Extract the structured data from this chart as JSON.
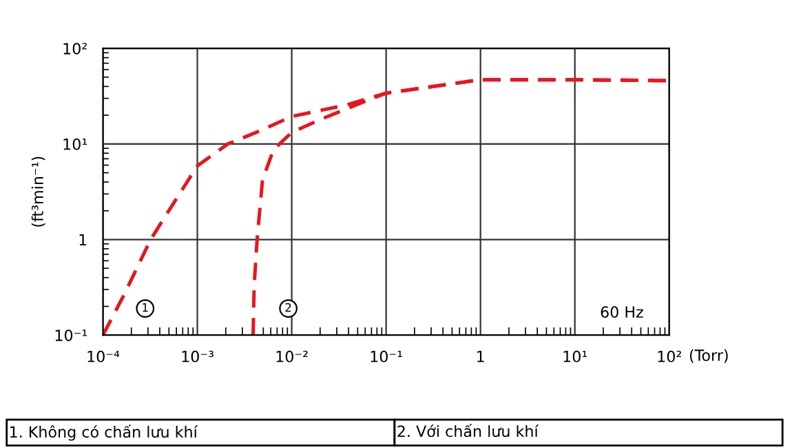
{
  "chart_data": {
    "type": "line",
    "ylabel": "(ft³min⁻¹)",
    "xlabel": "(Torr)",
    "log": "xy",
    "xlim": [
      0.0001,
      100
    ],
    "ylim": [
      0.1,
      100
    ],
    "xticks": [
      {
        "value": 0.0001,
        "label": "10⁻⁴"
      },
      {
        "value": 0.001,
        "label": "10⁻³"
      },
      {
        "value": 0.01,
        "label": "10⁻²"
      },
      {
        "value": 0.1,
        "label": "10⁻¹"
      },
      1,
      {
        "value": 10,
        "label": "10¹"
      },
      {
        "value": 100,
        "label": "10²"
      }
    ],
    "yticks": [
      {
        "value": 0.1,
        "label": "10⁻¹"
      },
      1,
      {
        "value": 10,
        "label": "10¹"
      },
      {
        "value": 100,
        "label": "10²"
      }
    ],
    "grid": true,
    "legend": false,
    "marker": "none",
    "line_style": "dashed",
    "series": [
      {
        "color": "#e8161e",
        "x": [
          0.0001,
          0.000166,
          0.00032,
          0.00056,
          0.001,
          0.0021,
          0.0042,
          0.01,
          0.038,
          0.1,
          1,
          10,
          100
        ],
        "values": [
          0.1,
          0.26,
          1,
          2.4,
          5.9,
          10,
          13.2,
          19.4,
          25.6,
          34,
          47,
          47,
          46
        ]
      },
      {
        "color": "#e8161e",
        "x": [
          0.0039,
          0.004,
          0.0043,
          0.0049,
          0.0064,
          0.01,
          0.02,
          0.06,
          0.1,
          1,
          10,
          100
        ],
        "values": [
          0.1,
          0.33,
          1,
          4.2,
          8.7,
          13.2,
          18,
          28,
          34,
          47,
          47,
          46
        ]
      }
    ],
    "annotations": [
      {
        "text": "1",
        "x": 0.00028,
        "y": 0.19
      },
      {
        "text": "2",
        "x": 0.0092,
        "y": 0.19
      },
      "60 Hz",
      "1. Không có chấn lưu khí",
      "2. Với chấn lưu khí"
    ]
  }
}
